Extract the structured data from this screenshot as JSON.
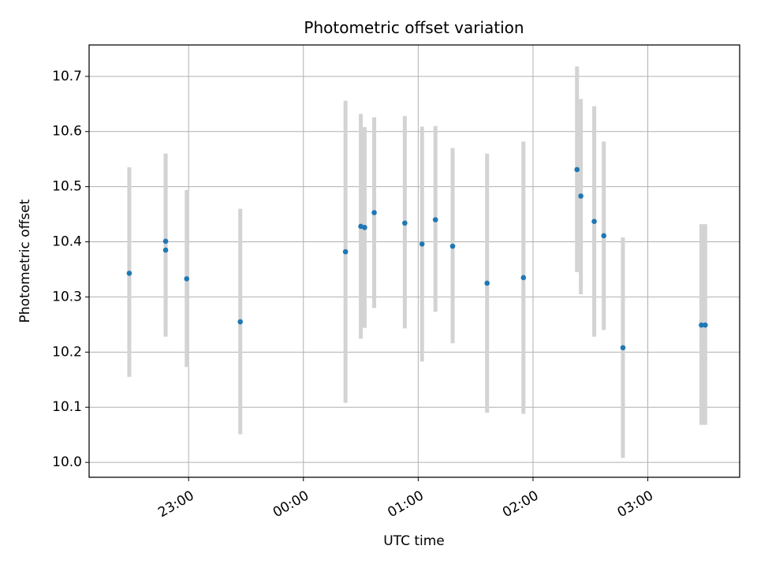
{
  "chart_data": {
    "type": "scatter",
    "title": "Photometric offset variation",
    "xlabel": "UTC time",
    "ylabel": "Photometric offset",
    "grid": true,
    "xlim": [
      "22:08",
      "03:48"
    ],
    "ylim": [
      9.973,
      10.757
    ],
    "x_ticks": [
      "23:00",
      "00:00",
      "01:00",
      "02:00",
      "03:00"
    ],
    "y_ticks": [
      "10.0",
      "10.1",
      "10.2",
      "10.3",
      "10.4",
      "10.5",
      "10.6",
      "10.7"
    ],
    "marker_color": "#1f77b4",
    "errorbar_color": "#d3d3d3",
    "points": [
      {
        "x": "22:29",
        "y": 10.343,
        "y_low": 10.155,
        "y_high": 10.535
      },
      {
        "x": "22:48",
        "y": 10.385,
        "y_low": 10.228,
        "y_high": 10.56
      },
      {
        "x": "22:48",
        "y": 10.401,
        "y_low": 10.245,
        "y_high": 10.56
      },
      {
        "x": "22:59",
        "y": 10.333,
        "y_low": 10.173,
        "y_high": 10.494
      },
      {
        "x": "23:27",
        "y": 10.255,
        "y_low": 10.051,
        "y_high": 10.46
      },
      {
        "x": "00:22",
        "y": 10.382,
        "y_low": 10.108,
        "y_high": 10.656
      },
      {
        "x": "00:30",
        "y": 10.428,
        "y_low": 10.224,
        "y_high": 10.632
      },
      {
        "x": "00:32",
        "y": 10.426,
        "y_low": 10.244,
        "y_high": 10.608
      },
      {
        "x": "00:37",
        "y": 10.453,
        "y_low": 10.28,
        "y_high": 10.626
      },
      {
        "x": "00:53",
        "y": 10.434,
        "y_low": 10.243,
        "y_high": 10.628
      },
      {
        "x": "01:02",
        "y": 10.396,
        "y_low": 10.183,
        "y_high": 10.609
      },
      {
        "x": "01:09",
        "y": 10.44,
        "y_low": 10.273,
        "y_high": 10.61
      },
      {
        "x": "01:18",
        "y": 10.392,
        "y_low": 10.216,
        "y_high": 10.57
      },
      {
        "x": "01:36",
        "y": 10.325,
        "y_low": 10.09,
        "y_high": 10.56
      },
      {
        "x": "01:55",
        "y": 10.335,
        "y_low": 10.088,
        "y_high": 10.582
      },
      {
        "x": "02:23",
        "y": 10.531,
        "y_low": 10.345,
        "y_high": 10.718
      },
      {
        "x": "02:25",
        "y": 10.483,
        "y_low": 10.305,
        "y_high": 10.659
      },
      {
        "x": "02:32",
        "y": 10.437,
        "y_low": 10.228,
        "y_high": 10.646
      },
      {
        "x": "02:37",
        "y": 10.411,
        "y_low": 10.24,
        "y_high": 10.582
      },
      {
        "x": "02:47",
        "y": 10.208,
        "y_low": 10.008,
        "y_high": 10.408
      },
      {
        "x": "03:28",
        "y": 10.249,
        "y_low": 10.068,
        "y_high": 10.432
      },
      {
        "x": "03:30",
        "y": 10.249,
        "y_low": 10.068,
        "y_high": 10.432
      }
    ]
  }
}
